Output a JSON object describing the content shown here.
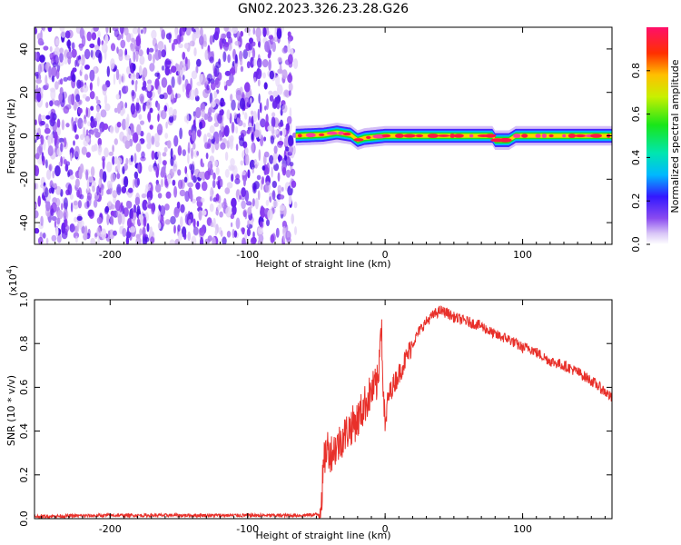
{
  "title": "GN02.2023.326.23.28.G26",
  "chart_data": [
    {
      "type": "heatmap",
      "title": "",
      "xlabel": "Height of straight line (km)",
      "ylabel": "Frequency (Hz)",
      "xlim": [
        -255,
        165
      ],
      "ylim": [
        -50,
        50
      ],
      "xticks": [
        -200,
        -100,
        0,
        100
      ],
      "yticks": [
        -40,
        -20,
        0,
        20,
        40
      ],
      "noise_region_x": [
        -255,
        -65
      ],
      "signal_band": {
        "x_start": -65,
        "x_end": 165,
        "center_frequency_points": [
          [
            -65,
            0
          ],
          [
            -45,
            0.5
          ],
          [
            -35,
            1.5
          ],
          [
            -25,
            0.5
          ],
          [
            -20,
            -2
          ],
          [
            -15,
            -1
          ],
          [
            0,
            0
          ],
          [
            40,
            0
          ],
          [
            60,
            0
          ],
          [
            78,
            0
          ],
          [
            80,
            -2
          ],
          [
            90,
            -2
          ],
          [
            95,
            0
          ],
          [
            165,
            0
          ]
        ]
      },
      "colorbar": {
        "label": "Normalized spectral amplitude",
        "range": [
          0,
          1
        ],
        "ticks": [
          0.0,
          0.2,
          0.4,
          0.6,
          0.8
        ],
        "tick_labels": [
          "0.0",
          "0.2",
          "0.4",
          "0.6",
          "0.8"
        ]
      }
    },
    {
      "type": "line",
      "title": "",
      "xlabel": "Height of straight line (km)",
      "ylabel": "SNR (10 * v/v)",
      "multiplier_label": "(x10",
      "multiplier_exponent": "4",
      "multiplier_close": ")",
      "xlim": [
        -255,
        165
      ],
      "ylim": [
        0,
        1.0
      ],
      "xticks": [
        -200,
        -100,
        0,
        100
      ],
      "yticks": [
        0.0,
        0.2,
        0.4,
        0.6,
        0.8,
        1.0
      ],
      "ytick_labels": [
        "0.0",
        "0.2",
        "0.4",
        "0.6",
        "0.8",
        "1.0"
      ],
      "series": [
        {
          "color": "#e8302a",
          "x": [
            -255,
            -200,
            -150,
            -100,
            -60,
            -48,
            -46,
            -44,
            -42,
            -40,
            -35,
            -30,
            -25,
            -20,
            -15,
            -10,
            -5,
            -3,
            -2,
            0,
            2,
            5,
            10,
            15,
            20,
            25,
            30,
            35,
            40,
            45,
            50,
            55,
            60,
            65,
            70,
            75,
            80,
            85,
            90,
            95,
            100,
            105,
            110,
            120,
            130,
            140,
            150,
            160,
            165
          ],
          "y": [
            0.01,
            0.015,
            0.015,
            0.015,
            0.015,
            0.02,
            0.12,
            0.28,
            0.33,
            0.3,
            0.33,
            0.38,
            0.42,
            0.45,
            0.52,
            0.58,
            0.62,
            0.95,
            0.7,
            0.4,
            0.55,
            0.6,
            0.66,
            0.73,
            0.8,
            0.86,
            0.9,
            0.93,
            0.95,
            0.94,
            0.92,
            0.91,
            0.9,
            0.89,
            0.88,
            0.86,
            0.84,
            0.83,
            0.82,
            0.8,
            0.78,
            0.78,
            0.76,
            0.72,
            0.7,
            0.67,
            0.63,
            0.58,
            0.55
          ]
        }
      ]
    }
  ],
  "colors": {
    "heatmap_noise": "#7a2ee6",
    "heatmap_noise_light": "#c9a6f2",
    "signal_high": "#ff1744",
    "signal_mid": "#00e676",
    "signal_low": "#00b0ff",
    "snr_line": "#e8302a"
  }
}
